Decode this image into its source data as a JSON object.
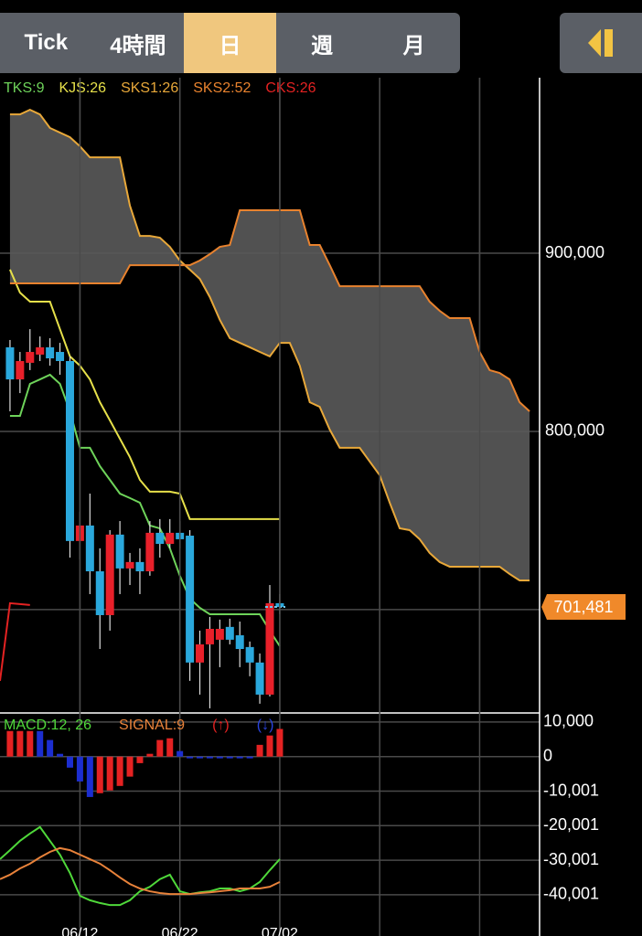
{
  "toolbar": {
    "tabs": [
      "Tick",
      "4時間",
      "日",
      "週",
      "月"
    ],
    "selected": 2,
    "selected_color": "#f0c77e"
  },
  "chart_data": [
    {
      "type": "ichimoku",
      "xlim": [
        -8,
        46
      ],
      "ylim": [
        642000,
        998500
      ],
      "xgrid": [
        0,
        10,
        20,
        30,
        40
      ],
      "yticks": [
        {
          "value": 900000,
          "label": "900,000"
        },
        {
          "value": 800000,
          "label": "800,000"
        },
        {
          "value": 700000,
          "label": null
        }
      ],
      "grid": true,
      "last_price": {
        "value": 701481,
        "label": "701,481",
        "color": "#f0892a"
      },
      "cloud_fill": "#5a5a5a",
      "candles": {
        "up_color": "#e8202a",
        "down_color": "#2aa8dc",
        "x": [
          -7,
          -6,
          -5,
          -4,
          -3,
          -2,
          -1,
          0,
          1,
          2,
          3,
          4,
          5,
          6,
          7,
          8,
          9,
          10,
          11,
          12,
          13,
          14,
          15,
          16,
          17,
          18,
          19,
          20
        ],
        "open": [
          847200,
          829200,
          838500,
          843100,
          847200,
          844600,
          839500,
          738500,
          747200,
          721500,
          696900,
          742100,
          723100,
          726700,
          721500,
          743100,
          736900,
          743100,
          741500,
          670300,
          680500,
          683100,
          690300,
          685600,
          679000,
          670300,
          652300,
          703600
        ],
        "high": [
          851300,
          844600,
          857400,
          853300,
          852300,
          849700,
          842100,
          754900,
          765100,
          734400,
          744600,
          749700,
          731800,
          734400,
          749700,
          750800,
          750800,
          749700,
          744600,
          688200,
          695900,
          694400,
          694900,
          693300,
          682100,
          675400,
          713800,
          708700
        ],
        "low": [
          811300,
          821500,
          834400,
          839500,
          836900,
          831800,
          729200,
          728200,
          708700,
          677900,
          688200,
          708700,
          713800,
          708700,
          719000,
          729200,
          734400,
          734400,
          660000,
          652300,
          644600,
          667700,
          680500,
          667700,
          662600,
          647200,
          651300,
          697400
        ],
        "close": [
          829200,
          839500,
          844600,
          847200,
          841000,
          839500,
          738500,
          747200,
          721500,
          696900,
          742100,
          723100,
          726700,
          721500,
          743100,
          736900,
          743100,
          739500,
          670300,
          680500,
          689200,
          689200,
          683100,
          677900,
          670300,
          652300,
          703600,
          701481
        ]
      },
      "series": [
        {
          "name": "TKS:9",
          "color": "#6ed35a",
          "x": [
            -7,
            -6,
            -5,
            -4,
            -3,
            -2,
            -1,
            0,
            1,
            2,
            3,
            4,
            5,
            6,
            7,
            8,
            9,
            10,
            11,
            12,
            13,
            14,
            15,
            16,
            17,
            18,
            19,
            20
          ],
          "values": [
            808700,
            808700,
            826700,
            829200,
            831800,
            826700,
            811300,
            790800,
            790800,
            780500,
            772800,
            765100,
            762600,
            760000,
            747200,
            745600,
            734400,
            719000,
            706200,
            701000,
            697400,
            697400,
            697400,
            697400,
            697400,
            697400,
            688200,
            679500
          ]
        },
        {
          "name": "KJS:26",
          "color": "#e6e04a",
          "x": [
            -7,
            -6,
            -5,
            -4,
            -3,
            -2,
            -1,
            0,
            1,
            2,
            3,
            4,
            5,
            6,
            7,
            8,
            9,
            10,
            11,
            12,
            13,
            14,
            15,
            16,
            17,
            18,
            19,
            20
          ],
          "values": [
            890800,
            877900,
            872800,
            872800,
            872800,
            857400,
            842100,
            836900,
            829200,
            816400,
            806200,
            795900,
            785600,
            772800,
            766200,
            766200,
            766200,
            765100,
            750800,
            750800,
            750800,
            750800,
            750800,
            750800,
            750800,
            750800,
            750800,
            750800
          ]
        },
        {
          "name": "SKS1:26",
          "color": "#e8a83a",
          "cloud": true,
          "x": [
            -7,
            -6,
            -5,
            -4,
            -3,
            -2,
            -1,
            0,
            1,
            2,
            3,
            4,
            5,
            6,
            7,
            8,
            9,
            10,
            11,
            12,
            13,
            14,
            15,
            16,
            17,
            18,
            19,
            20,
            21,
            22,
            23,
            24,
            25,
            26,
            27,
            28,
            29,
            30,
            31,
            32,
            33,
            34,
            35,
            36,
            37,
            38,
            39,
            40,
            41,
            42,
            43,
            44,
            45
          ],
          "values": [
            977900,
            977900,
            980500,
            977900,
            970300,
            967700,
            965100,
            960000,
            953800,
            953800,
            953800,
            953800,
            926700,
            909700,
            909700,
            908700,
            903600,
            895900,
            890800,
            885600,
            875400,
            862600,
            852300,
            849700,
            847200,
            844600,
            842100,
            849700,
            849700,
            836900,
            816400,
            813800,
            801000,
            790800,
            790800,
            790800,
            783100,
            775400,
            760000,
            745600,
            744600,
            739500,
            731800,
            726700,
            724100,
            724100,
            724100,
            724100,
            724100,
            724100,
            720000,
            716400,
            716400
          ]
        },
        {
          "name": "SKS2:52",
          "color": "#e8822e",
          "cloud": true,
          "x": [
            -7,
            -6,
            -5,
            -4,
            -3,
            -2,
            -1,
            0,
            1,
            2,
            3,
            4,
            5,
            6,
            7,
            8,
            9,
            10,
            11,
            12,
            13,
            14,
            15,
            16,
            17,
            18,
            19,
            20,
            21,
            22,
            23,
            24,
            25,
            26,
            27,
            28,
            29,
            30,
            31,
            32,
            33,
            34,
            35,
            36,
            37,
            38,
            39,
            40,
            41,
            42,
            43,
            44,
            45
          ],
          "values": [
            883100,
            883100,
            883100,
            883100,
            883100,
            883100,
            883100,
            883100,
            883100,
            883100,
            883100,
            883100,
            893300,
            893300,
            893300,
            893300,
            893300,
            893300,
            893300,
            895900,
            899500,
            903600,
            904600,
            924100,
            924100,
            924100,
            924100,
            924100,
            924100,
            924100,
            904600,
            904600,
            893300,
            881500,
            881500,
            881500,
            881500,
            881500,
            881500,
            881500,
            881500,
            881500,
            872800,
            867700,
            863600,
            863600,
            863600,
            844600,
            834400,
            832800,
            829200,
            816400,
            811300
          ]
        },
        {
          "name": "CKS:26",
          "color": "#e42222",
          "x": [
            -8,
            -7,
            -6,
            -5
          ],
          "values": [
            660000,
            703600,
            703100,
            702600
          ]
        }
      ]
    },
    {
      "type": "macd",
      "xlim": [
        -8,
        46
      ],
      "ylim": [
        -45600,
        12100
      ],
      "xticks": [
        {
          "value": 0,
          "label": "06/12"
        },
        {
          "value": 10,
          "label": "06/22"
        },
        {
          "value": 20,
          "label": "07/02"
        },
        {
          "value": 30,
          "label": null
        },
        {
          "value": 40,
          "label": null
        }
      ],
      "yticks": [
        {
          "value": 10000,
          "label": "10,000"
        },
        0,
        {
          "value": -10001,
          "label": "-10,001"
        },
        {
          "value": -20001,
          "label": "-20,001"
        },
        {
          "value": -30001,
          "label": "-30,001"
        },
        {
          "value": -40001,
          "label": "-40,001"
        }
      ],
      "grid": true,
      "histogram": {
        "x": [
          -7,
          -6,
          -5,
          -4,
          -3,
          -2,
          -1,
          0,
          1,
          2,
          3,
          4,
          5,
          6,
          7,
          8,
          9,
          10,
          11,
          12,
          13,
          14,
          15,
          16,
          17,
          18,
          19,
          20
        ],
        "values": [
          7400,
          7400,
          7400,
          7400,
          4800,
          800,
          -3200,
          -7200,
          -11700,
          -10600,
          -9800,
          -8500,
          -5800,
          -1900,
          800,
          4800,
          5300,
          1600,
          -500,
          -500,
          -500,
          -500,
          -500,
          -500,
          -500,
          3400,
          6100,
          8000
        ],
        "colors": [
          "#e42222",
          "#e42222",
          "#e42222",
          "#1c2ed0",
          "#1c2ed0",
          "#1c2ed0",
          "#1c2ed0",
          "#1c2ed0",
          "#1c2ed0",
          "#e42222",
          "#e42222",
          "#e42222",
          "#e42222",
          "#e42222",
          "#e42222",
          "#e42222",
          "#e42222",
          "#1c2ed0",
          "#1c2ed0",
          "#1c2ed0",
          "#1c2ed0",
          "#1c2ed0",
          "#1c2ed0",
          "#1c2ed0",
          "#1c2ed0",
          "#e42222",
          "#e42222",
          "#e42222"
        ],
        "legend": [
          {
            "label": "(↑)",
            "color": "#e42222"
          },
          {
            "label": "(↓)",
            "color": "#2a44e0"
          }
        ]
      },
      "series": [
        {
          "name": "MACD:12, 26",
          "color": "#4fd83a",
          "x": [
            -8,
            -7,
            -6,
            -5,
            -4,
            -3,
            -2,
            -1,
            0,
            1,
            2,
            3,
            4,
            5,
            6,
            7,
            8,
            9,
            10,
            11,
            12,
            13,
            14,
            15,
            16,
            17,
            18,
            19,
            20
          ],
          "values": [
            -29700,
            -27100,
            -24400,
            -22300,
            -20400,
            -24400,
            -28400,
            -33700,
            -40300,
            -41600,
            -42400,
            -43000,
            -43000,
            -41600,
            -39000,
            -37700,
            -35500,
            -34200,
            -39000,
            -39800,
            -39300,
            -39000,
            -38200,
            -38200,
            -39000,
            -38200,
            -36300,
            -32900,
            -29700
          ]
        },
        {
          "name": "SIGNAL:9",
          "color": "#e8823a",
          "x": [
            -8,
            -7,
            -6,
            -5,
            -4,
            -3,
            -2,
            -1,
            0,
            1,
            2,
            3,
            4,
            5,
            6,
            7,
            8,
            9,
            10,
            11,
            12,
            13,
            14,
            15,
            16,
            17,
            18,
            19,
            20
          ],
          "values": [
            -35500,
            -34200,
            -32400,
            -31000,
            -29200,
            -27600,
            -26500,
            -27100,
            -28400,
            -29700,
            -31000,
            -32900,
            -35000,
            -36900,
            -38200,
            -39000,
            -39500,
            -39800,
            -39800,
            -39800,
            -39500,
            -39300,
            -39000,
            -38700,
            -38200,
            -38200,
            -38200,
            -37700,
            -36300
          ]
        }
      ]
    }
  ]
}
